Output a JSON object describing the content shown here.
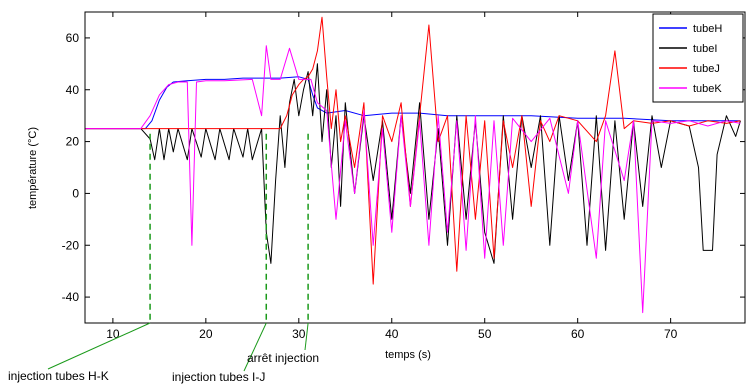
{
  "chart_data": {
    "type": "line",
    "title": "",
    "xlabel": "temps (s)",
    "ylabel": "température (°C)",
    "xlim": [
      7,
      78
    ],
    "ylim": [
      -50,
      70
    ],
    "xticks": [
      10,
      20,
      30,
      40,
      50,
      60,
      70
    ],
    "yticks": [
      -40,
      -20,
      0,
      20,
      40,
      60
    ],
    "legend_position": "top-right",
    "grid": false,
    "series": [
      {
        "name": "tubeH",
        "color": "#0000ff",
        "points": [
          [
            7,
            25
          ],
          [
            12,
            25
          ],
          [
            13.5,
            25
          ],
          [
            14.2,
            28
          ],
          [
            15,
            36
          ],
          [
            15.8,
            41
          ],
          [
            16.5,
            43
          ],
          [
            18,
            43.5
          ],
          [
            20,
            44
          ],
          [
            22,
            44
          ],
          [
            24,
            44.5
          ],
          [
            26,
            44.5
          ],
          [
            28,
            44.5
          ],
          [
            30,
            45
          ],
          [
            31,
            44
          ],
          [
            31.5,
            38
          ],
          [
            32,
            33
          ],
          [
            33,
            31
          ],
          [
            35,
            32
          ],
          [
            37,
            30
          ],
          [
            40,
            31
          ],
          [
            43,
            31
          ],
          [
            46,
            30
          ],
          [
            50,
            30
          ],
          [
            55,
            30
          ],
          [
            60,
            29
          ],
          [
            65,
            29
          ],
          [
            70,
            28
          ],
          [
            75,
            28
          ],
          [
            77.5,
            28
          ]
        ]
      },
      {
        "name": "tubeI",
        "color": "#000000",
        "points": [
          [
            7,
            25
          ],
          [
            13,
            25
          ],
          [
            14,
            21
          ],
          [
            14.5,
            13
          ],
          [
            15,
            25
          ],
          [
            15.5,
            13
          ],
          [
            16,
            25
          ],
          [
            16.5,
            16
          ],
          [
            17,
            25
          ],
          [
            18,
            13
          ],
          [
            18.5,
            25
          ],
          [
            19.5,
            14
          ],
          [
            20,
            25
          ],
          [
            21,
            13
          ],
          [
            21.5,
            25
          ],
          [
            22.5,
            13
          ],
          [
            23,
            25
          ],
          [
            24,
            14
          ],
          [
            24.5,
            25
          ],
          [
            25,
            13
          ],
          [
            26,
            25
          ],
          [
            26.5,
            -15
          ],
          [
            27,
            -27
          ],
          [
            27.5,
            5
          ],
          [
            28,
            30
          ],
          [
            28.5,
            10
          ],
          [
            29,
            35
          ],
          [
            29.5,
            44
          ],
          [
            30,
            30
          ],
          [
            30.5,
            40
          ],
          [
            31,
            47
          ],
          [
            31.5,
            30
          ],
          [
            32,
            50
          ],
          [
            32.5,
            20
          ],
          [
            33,
            40
          ],
          [
            33.5,
            10
          ],
          [
            34,
            30
          ],
          [
            34.5,
            -5
          ],
          [
            35,
            35
          ],
          [
            36,
            0
          ],
          [
            37,
            30
          ],
          [
            38,
            5
          ],
          [
            39,
            28
          ],
          [
            40,
            -10
          ],
          [
            41,
            30
          ],
          [
            42,
            0
          ],
          [
            43,
            35
          ],
          [
            44,
            -10
          ],
          [
            45,
            25
          ],
          [
            46,
            -20
          ],
          [
            47,
            30
          ],
          [
            48,
            -10
          ],
          [
            49,
            28
          ],
          [
            50,
            -15
          ],
          [
            51,
            -27
          ],
          [
            52,
            30
          ],
          [
            53,
            -10
          ],
          [
            54,
            30
          ],
          [
            55,
            10
          ],
          [
            56,
            30
          ],
          [
            57,
            -20
          ],
          [
            58,
            30
          ],
          [
            59,
            5
          ],
          [
            60,
            28
          ],
          [
            61,
            -20
          ],
          [
            62,
            30
          ],
          [
            63,
            -22
          ],
          [
            64,
            28
          ],
          [
            65,
            -10
          ],
          [
            66,
            28
          ],
          [
            67,
            -5
          ],
          [
            68,
            30
          ],
          [
            69,
            10
          ],
          [
            70,
            28
          ],
          [
            72,
            26
          ],
          [
            73,
            10
          ],
          [
            73.5,
            -22
          ],
          [
            74.5,
            -22
          ],
          [
            75,
            15
          ],
          [
            76,
            30
          ],
          [
            77,
            22
          ],
          [
            77.5,
            28
          ]
        ]
      },
      {
        "name": "tubeJ",
        "color": "#ff0000",
        "points": [
          [
            7,
            25
          ],
          [
            28,
            25
          ],
          [
            28.7,
            30
          ],
          [
            29.3,
            38
          ],
          [
            30,
            42
          ],
          [
            30.5,
            44
          ],
          [
            31,
            45
          ],
          [
            31.5,
            48
          ],
          [
            32,
            55
          ],
          [
            32.5,
            68
          ],
          [
            33,
            45
          ],
          [
            33.5,
            25
          ],
          [
            34,
            40
          ],
          [
            34.5,
            20
          ],
          [
            35,
            30
          ],
          [
            36,
            10
          ],
          [
            37,
            35
          ],
          [
            38,
            -35
          ],
          [
            39,
            30
          ],
          [
            40,
            20
          ],
          [
            41,
            35
          ],
          [
            42,
            -5
          ],
          [
            43,
            30
          ],
          [
            44,
            65
          ],
          [
            45,
            20
          ],
          [
            46,
            30
          ],
          [
            47,
            -30
          ],
          [
            48,
            30
          ],
          [
            49,
            -10
          ],
          [
            50,
            28
          ],
          [
            51,
            -25
          ],
          [
            52,
            28
          ],
          [
            53,
            10
          ],
          [
            54,
            30
          ],
          [
            55,
            -5
          ],
          [
            56,
            28
          ],
          [
            57,
            20
          ],
          [
            58,
            30
          ],
          [
            60,
            28
          ],
          [
            62,
            20
          ],
          [
            63,
            30
          ],
          [
            64,
            55
          ],
          [
            65,
            25
          ],
          [
            66,
            28
          ],
          [
            68,
            27
          ],
          [
            70,
            28
          ],
          [
            72,
            26
          ],
          [
            74,
            28
          ],
          [
            76,
            27
          ],
          [
            77.5,
            28
          ]
        ]
      },
      {
        "name": "tubeK",
        "color": "#ff00ff",
        "points": [
          [
            7,
            25
          ],
          [
            13,
            25
          ],
          [
            14,
            30
          ],
          [
            15,
            38
          ],
          [
            16,
            42
          ],
          [
            17,
            43
          ],
          [
            18,
            43
          ],
          [
            18.5,
            -20
          ],
          [
            19,
            43
          ],
          [
            20,
            43.5
          ],
          [
            22,
            43.5
          ],
          [
            25,
            44
          ],
          [
            26,
            30
          ],
          [
            26.5,
            57
          ],
          [
            27,
            44
          ],
          [
            28,
            44
          ],
          [
            29,
            56
          ],
          [
            30,
            44
          ],
          [
            31,
            44
          ],
          [
            31.3,
            44
          ],
          [
            32,
            35
          ],
          [
            33,
            32
          ],
          [
            34,
            -10
          ],
          [
            35,
            28
          ],
          [
            36,
            0
          ],
          [
            37,
            32
          ],
          [
            38,
            -20
          ],
          [
            39,
            25
          ],
          [
            40,
            -15
          ],
          [
            41,
            30
          ],
          [
            42,
            -5
          ],
          [
            43,
            28
          ],
          [
            44,
            -20
          ],
          [
            45,
            30
          ],
          [
            46,
            -15
          ],
          [
            47,
            28
          ],
          [
            48,
            -22
          ],
          [
            49,
            30
          ],
          [
            50,
            -25
          ],
          [
            51,
            28
          ],
          [
            52,
            -20
          ],
          [
            53,
            29
          ],
          [
            55,
            20
          ],
          [
            57,
            29
          ],
          [
            59,
            0
          ],
          [
            60,
            28
          ],
          [
            62,
            -25
          ],
          [
            63,
            28
          ],
          [
            65,
            5
          ],
          [
            66,
            28
          ],
          [
            67,
            -46
          ],
          [
            68,
            28
          ],
          [
            70,
            27
          ],
          [
            72,
            28
          ],
          [
            74,
            26
          ],
          [
            76,
            28
          ],
          [
            77.5,
            27
          ]
        ]
      }
    ],
    "annotations": [
      {
        "text": "injection tubes H-K",
        "x": 14
      },
      {
        "text": "injection tubes I-J",
        "x": 26.5
      },
      {
        "text": "arrêt injection",
        "x": 31
      }
    ]
  }
}
